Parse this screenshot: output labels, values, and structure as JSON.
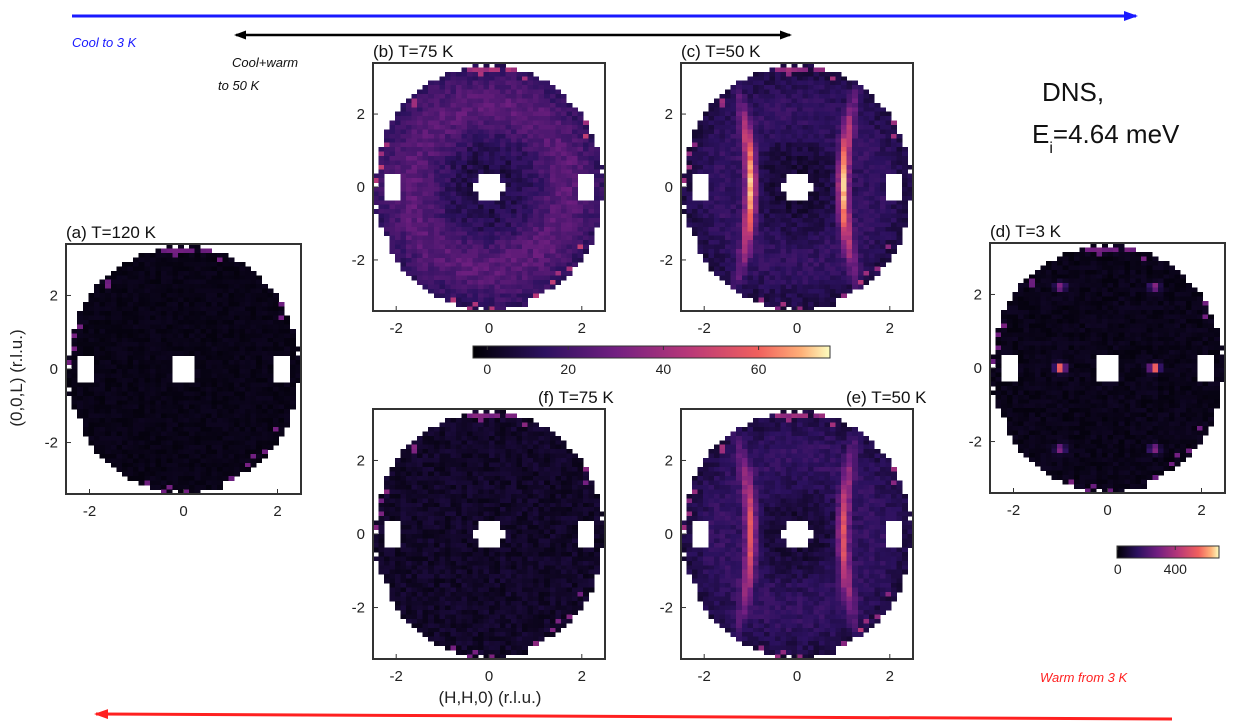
{
  "arrows": {
    "cool": {
      "label": "Cool to 3 K",
      "color": "#1a1aff"
    },
    "cool_warm": {
      "label_line1": "Cool+warm",
      "label_line2": "to 50 K",
      "color": "#000000"
    },
    "warm": {
      "label": "Warm from 3 K",
      "color": "#ff2020"
    }
  },
  "instrument": {
    "line1": "DNS,",
    "line2_prefix": "E",
    "line2_sub": "i",
    "line2_suffix": "=4.64 meV"
  },
  "axes": {
    "xlabel": "(H,H,0) (r.l.u.)",
    "ylabel": "(0,0,L) (r.l.u.)"
  },
  "colorbars": {
    "main": {
      "ticks": [
        "0",
        "20",
        "40",
        "60"
      ],
      "range": [
        0,
        75
      ]
    },
    "d": {
      "ticks": [
        "0",
        "400"
      ],
      "range": [
        0,
        700
      ]
    }
  },
  "colors": {
    "low": "#000000",
    "mid1": "#3b0f70",
    "mid2": "#8c2981",
    "mid3": "#de4968",
    "mid4": "#fe9f6d",
    "high": "#fcfdbf"
  },
  "chart_data": [
    {
      "panel": "a",
      "type": "heatmap",
      "title": "(a) T=120 K",
      "xticks": [
        "-2",
        "0",
        "2"
      ],
      "yticks": [
        "2",
        "0",
        "-2"
      ],
      "xlim": [
        -2.5,
        2.5
      ],
      "ylim": [
        -3.4,
        3.4
      ],
      "pattern": "uniform-low",
      "level": 0.02
    },
    {
      "panel": "b",
      "type": "heatmap",
      "title": "(b) T=75 K",
      "xticks": [
        "-2",
        "0",
        "2"
      ],
      "yticks": [
        "2",
        "0",
        "-2"
      ],
      "xlim": [
        -2.5,
        2.5
      ],
      "ylim": [
        -3.4,
        3.4
      ],
      "pattern": "ring",
      "level": 0.35
    },
    {
      "panel": "c",
      "type": "heatmap",
      "title": "(c) T=50 K",
      "xticks": [
        "-2",
        "0",
        "2"
      ],
      "yticks": [
        "2",
        "0",
        "-2"
      ],
      "xlim": [
        -2.5,
        2.5
      ],
      "ylim": [
        -3.4,
        3.4
      ],
      "pattern": "rods",
      "level": 0.8
    },
    {
      "panel": "d",
      "type": "heatmap",
      "title": "(d) T=3 K",
      "xticks": [
        "-2",
        "0",
        "2"
      ],
      "yticks": [
        "2",
        "0",
        "-2"
      ],
      "xlim": [
        -2.5,
        2.5
      ],
      "ylim": [
        -3.4,
        3.4
      ],
      "pattern": "bragg-peaks",
      "level": 1.0,
      "peaks": [
        {
          "h": -1,
          "l": 2.2
        },
        {
          "h": 1,
          "l": 2.2
        },
        {
          "h": -1,
          "l": 0
        },
        {
          "h": 1,
          "l": 0
        },
        {
          "h": -1,
          "l": -2.2
        },
        {
          "h": 1,
          "l": -2.2
        }
      ]
    },
    {
      "panel": "e",
      "type": "heatmap",
      "title": "(e) T=50 K",
      "xticks": [
        "-2",
        "0",
        "2"
      ],
      "yticks": [
        "2",
        "0",
        "-2"
      ],
      "xlim": [
        -2.5,
        2.5
      ],
      "ylim": [
        -3.4,
        3.4
      ],
      "pattern": "rods",
      "level": 0.6
    },
    {
      "panel": "f",
      "type": "heatmap",
      "title": "(f) T=75 K",
      "xticks": [
        "-2",
        "0",
        "2"
      ],
      "yticks": [
        "2",
        "0",
        "-2"
      ],
      "xlim": [
        -2.5,
        2.5
      ],
      "ylim": [
        -3.4,
        3.4
      ],
      "pattern": "weak",
      "level": 0.1
    }
  ]
}
